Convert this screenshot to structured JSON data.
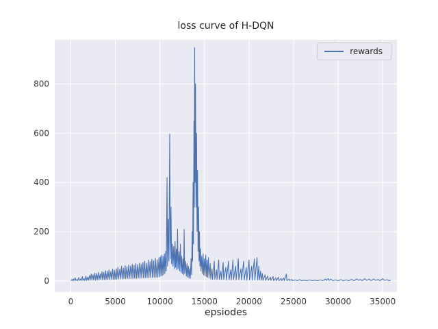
{
  "figure": {
    "title": "loss curve of H-DQN",
    "xlabel": "epsiodes",
    "legend": {
      "items": [
        {
          "label": "rewards",
          "color": "#4c72b0"
        }
      ]
    }
  },
  "chart_data": {
    "type": "line",
    "title": "loss curve of H-DQN",
    "xlabel": "epsiodes",
    "ylabel": "",
    "xlim": [
      -1800,
      36600
    ],
    "ylim": [
      -45,
      980
    ],
    "xticks": [
      0,
      5000,
      10000,
      15000,
      20000,
      25000,
      30000,
      35000
    ],
    "yticks": [
      0,
      200,
      400,
      600,
      800
    ],
    "grid": true,
    "legend_position": "upper right",
    "plot_bg": "#eaeaf2",
    "grid_color": "#ffffff",
    "series": [
      {
        "name": "rewards",
        "color": "#4c72b0",
        "points": [
          [
            0,
            1
          ],
          [
            100,
            5
          ],
          [
            160,
            1
          ],
          [
            300,
            8
          ],
          [
            360,
            1
          ],
          [
            500,
            12
          ],
          [
            560,
            2
          ],
          [
            700,
            6
          ],
          [
            760,
            1
          ],
          [
            900,
            14
          ],
          [
            960,
            2
          ],
          [
            1100,
            8
          ],
          [
            1160,
            1
          ],
          [
            1300,
            18
          ],
          [
            1360,
            2
          ],
          [
            1500,
            10
          ],
          [
            1560,
            1
          ],
          [
            1700,
            20
          ],
          [
            1760,
            2
          ],
          [
            1900,
            15
          ],
          [
            1960,
            2
          ],
          [
            2100,
            22
          ],
          [
            2160,
            3
          ],
          [
            2300,
            28
          ],
          [
            2360,
            3
          ],
          [
            2500,
            25
          ],
          [
            2560,
            4
          ],
          [
            2700,
            32
          ],
          [
            2760,
            3
          ],
          [
            2900,
            30
          ],
          [
            2960,
            4
          ],
          [
            3100,
            35
          ],
          [
            3160,
            4
          ],
          [
            3300,
            28
          ],
          [
            3360,
            5
          ],
          [
            3500,
            38
          ],
          [
            3560,
            4
          ],
          [
            3700,
            35
          ],
          [
            3760,
            5
          ],
          [
            3900,
            42
          ],
          [
            3960,
            5
          ],
          [
            4100,
            40
          ],
          [
            4160,
            6
          ],
          [
            4300,
            45
          ],
          [
            4360,
            5
          ],
          [
            4500,
            38
          ],
          [
            4560,
            6
          ],
          [
            4700,
            48
          ],
          [
            4760,
            6
          ],
          [
            4900,
            44
          ],
          [
            4960,
            6
          ],
          [
            5100,
            50
          ],
          [
            5160,
            7
          ],
          [
            5300,
            55
          ],
          [
            5360,
            8
          ],
          [
            5500,
            48
          ],
          [
            5560,
            8
          ],
          [
            5700,
            60
          ],
          [
            5760,
            8
          ],
          [
            5900,
            52
          ],
          [
            5960,
            9
          ],
          [
            6100,
            62
          ],
          [
            6160,
            9
          ],
          [
            6300,
            58
          ],
          [
            6360,
            10
          ],
          [
            6500,
            65
          ],
          [
            6560,
            9
          ],
          [
            6700,
            60
          ],
          [
            6760,
            10
          ],
          [
            6900,
            68
          ],
          [
            6960,
            10
          ],
          [
            7100,
            64
          ],
          [
            7160,
            11
          ],
          [
            7300,
            70
          ],
          [
            7360,
            10
          ],
          [
            7500,
            66
          ],
          [
            7560,
            11
          ],
          [
            7700,
            72
          ],
          [
            7760,
            11
          ],
          [
            7900,
            68
          ],
          [
            7960,
            12
          ],
          [
            8100,
            75
          ],
          [
            8160,
            12
          ],
          [
            8300,
            80
          ],
          [
            8360,
            13
          ],
          [
            8500,
            72
          ],
          [
            8560,
            13
          ],
          [
            8700,
            85
          ],
          [
            8760,
            13
          ],
          [
            8900,
            78
          ],
          [
            8960,
            14
          ],
          [
            9100,
            88
          ],
          [
            9160,
            14
          ],
          [
            9300,
            82
          ],
          [
            9360,
            15
          ],
          [
            9500,
            92
          ],
          [
            9560,
            15
          ],
          [
            9700,
            86
          ],
          [
            9760,
            15
          ],
          [
            9900,
            95
          ],
          [
            9960,
            16
          ],
          [
            10050,
            98
          ],
          [
            10110,
            20
          ],
          [
            10200,
            105
          ],
          [
            10260,
            22
          ],
          [
            10350,
            100
          ],
          [
            10410,
            25
          ],
          [
            10500,
            110
          ],
          [
            10560,
            30
          ],
          [
            10650,
            120
          ],
          [
            10710,
            40
          ],
          [
            10800,
            420
          ],
          [
            10860,
            60
          ],
          [
            10950,
            250
          ],
          [
            11010,
            80
          ],
          [
            11100,
            597
          ],
          [
            11160,
            90
          ],
          [
            11250,
            300
          ],
          [
            11310,
            70
          ],
          [
            11400,
            150
          ],
          [
            11460,
            60
          ],
          [
            11550,
            140
          ],
          [
            11610,
            50
          ],
          [
            11700,
            160
          ],
          [
            11760,
            55
          ],
          [
            11850,
            130
          ],
          [
            11910,
            45
          ],
          [
            11980,
            210
          ],
          [
            12040,
            50
          ],
          [
            12150,
            120
          ],
          [
            12210,
            40
          ],
          [
            12300,
            150
          ],
          [
            12360,
            35
          ],
          [
            12450,
            100
          ],
          [
            12510,
            30
          ],
          [
            12600,
            90
          ],
          [
            12660,
            25
          ],
          [
            12720,
            210
          ],
          [
            12780,
            30
          ],
          [
            12900,
            80
          ],
          [
            12960,
            20
          ],
          [
            13050,
            70
          ],
          [
            13110,
            15
          ],
          [
            13200,
            60
          ],
          [
            13260,
            12
          ],
          [
            13350,
            50
          ],
          [
            13410,
            10
          ],
          [
            13500,
            90
          ],
          [
            13550,
            25
          ],
          [
            13620,
            200
          ],
          [
            13670,
            80
          ],
          [
            13720,
            400
          ],
          [
            13770,
            150
          ],
          [
            13820,
            650
          ],
          [
            13860,
            300
          ],
          [
            13900,
            948
          ],
          [
            13950,
            400
          ],
          [
            14000,
            800
          ],
          [
            14050,
            300
          ],
          [
            14120,
            600
          ],
          [
            14170,
            200
          ],
          [
            14230,
            450
          ],
          [
            14280,
            120
          ],
          [
            14340,
            300
          ],
          [
            14390,
            80
          ],
          [
            14440,
            200
          ],
          [
            14490,
            60
          ],
          [
            14560,
            130
          ],
          [
            14610,
            40
          ],
          [
            14700,
            100
          ],
          [
            14760,
            30
          ],
          [
            14850,
            110
          ],
          [
            14910,
            25
          ],
          [
            15000,
            90
          ],
          [
            15060,
            20
          ],
          [
            15150,
            105
          ],
          [
            15210,
            18
          ],
          [
            15300,
            85
          ],
          [
            15360,
            15
          ],
          [
            15450,
            95
          ],
          [
            15510,
            12
          ],
          [
            15650,
            70
          ],
          [
            15710,
            8
          ],
          [
            15850,
            50
          ],
          [
            15910,
            6
          ],
          [
            16100,
            80
          ],
          [
            16160,
            7
          ],
          [
            16350,
            45
          ],
          [
            16410,
            5
          ],
          [
            16600,
            85
          ],
          [
            16660,
            6
          ],
          [
            16850,
            40
          ],
          [
            16910,
            5
          ],
          [
            17100,
            75
          ],
          [
            17160,
            5
          ],
          [
            17400,
            55
          ],
          [
            17460,
            4
          ],
          [
            17700,
            80
          ],
          [
            17760,
            5
          ],
          [
            17950,
            45
          ],
          [
            18010,
            4
          ],
          [
            18200,
            85
          ],
          [
            18260,
            5
          ],
          [
            18500,
            60
          ],
          [
            18560,
            4
          ],
          [
            18800,
            90
          ],
          [
            18860,
            5
          ],
          [
            19100,
            50
          ],
          [
            19160,
            4
          ],
          [
            19400,
            80
          ],
          [
            19460,
            4
          ],
          [
            19700,
            55
          ],
          [
            19760,
            3
          ],
          [
            20000,
            85
          ],
          [
            20060,
            4
          ],
          [
            20300,
            60
          ],
          [
            20360,
            3
          ],
          [
            20600,
            90
          ],
          [
            20660,
            4
          ],
          [
            20900,
            95
          ],
          [
            20960,
            4
          ],
          [
            21100,
            60
          ],
          [
            21160,
            3
          ],
          [
            21300,
            40
          ],
          [
            21360,
            3
          ],
          [
            21500,
            30
          ],
          [
            21560,
            2
          ],
          [
            21800,
            25
          ],
          [
            21860,
            2
          ],
          [
            22100,
            20
          ],
          [
            22160,
            2
          ],
          [
            22400,
            15
          ],
          [
            22460,
            2
          ],
          [
            22700,
            18
          ],
          [
            22760,
            1
          ],
          [
            23000,
            12
          ],
          [
            23060,
            1
          ],
          [
            23300,
            15
          ],
          [
            23360,
            1
          ],
          [
            23600,
            10
          ],
          [
            23660,
            1
          ],
          [
            23900,
            12
          ],
          [
            23960,
            1
          ],
          [
            24200,
            28
          ],
          [
            24260,
            1
          ],
          [
            24500,
            8
          ],
          [
            24560,
            1
          ],
          [
            24800,
            6
          ],
          [
            24860,
            1
          ],
          [
            25200,
            4
          ],
          [
            25400,
            1
          ],
          [
            25700,
            5
          ],
          [
            25900,
            1
          ],
          [
            26200,
            3
          ],
          [
            26500,
            1
          ],
          [
            26800,
            4
          ],
          [
            27100,
            1
          ],
          [
            27400,
            3
          ],
          [
            27700,
            1
          ],
          [
            28000,
            4
          ],
          [
            28300,
            1
          ],
          [
            28600,
            8
          ],
          [
            28700,
            2
          ],
          [
            28900,
            10
          ],
          [
            29000,
            2
          ],
          [
            29200,
            7
          ],
          [
            29400,
            1
          ],
          [
            29700,
            4
          ],
          [
            30000,
            1
          ],
          [
            30300,
            5
          ],
          [
            30600,
            1
          ],
          [
            30900,
            4
          ],
          [
            31200,
            1
          ],
          [
            31500,
            6
          ],
          [
            31800,
            1
          ],
          [
            32100,
            8
          ],
          [
            32300,
            2
          ],
          [
            32500,
            6
          ],
          [
            32700,
            1
          ],
          [
            33000,
            9
          ],
          [
            33200,
            2
          ],
          [
            33500,
            7
          ],
          [
            33700,
            1
          ],
          [
            34000,
            8
          ],
          [
            34200,
            2
          ],
          [
            34500,
            6
          ],
          [
            34700,
            1
          ],
          [
            35000,
            9
          ],
          [
            35200,
            2
          ],
          [
            35500,
            5
          ],
          [
            35700,
            1
          ],
          [
            35900,
            3
          ]
        ]
      }
    ]
  }
}
